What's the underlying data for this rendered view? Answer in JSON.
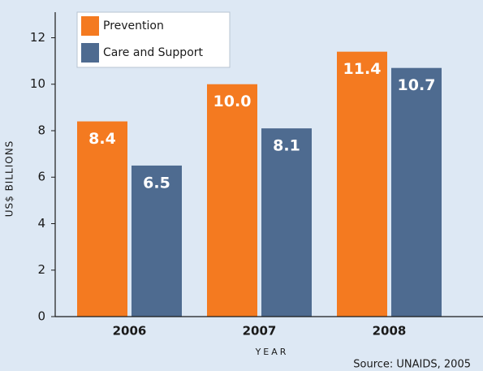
{
  "chart_data": {
    "type": "bar",
    "categories": [
      "2006",
      "2007",
      "2008"
    ],
    "series": [
      {
        "name": "Prevention",
        "color": "#f47a20",
        "values": [
          8.4,
          10.0,
          11.4
        ],
        "value_labels": [
          "8.4",
          "10.0",
          "11.4"
        ]
      },
      {
        "name": "Care and Support",
        "color": "#4e6b90",
        "values": [
          6.5,
          8.1,
          10.7
        ],
        "value_labels": [
          "6.5",
          "8.1",
          "10.7"
        ]
      }
    ],
    "ylim": [
      0,
      13.1
    ],
    "yticks": [
      0,
      2,
      4,
      6,
      8,
      10,
      12
    ],
    "y_label": "US$ BILLIONS",
    "x_label": "YEAR",
    "source": "Source: UNAIDS, 2005",
    "legend": "upper left",
    "grid": false
  }
}
